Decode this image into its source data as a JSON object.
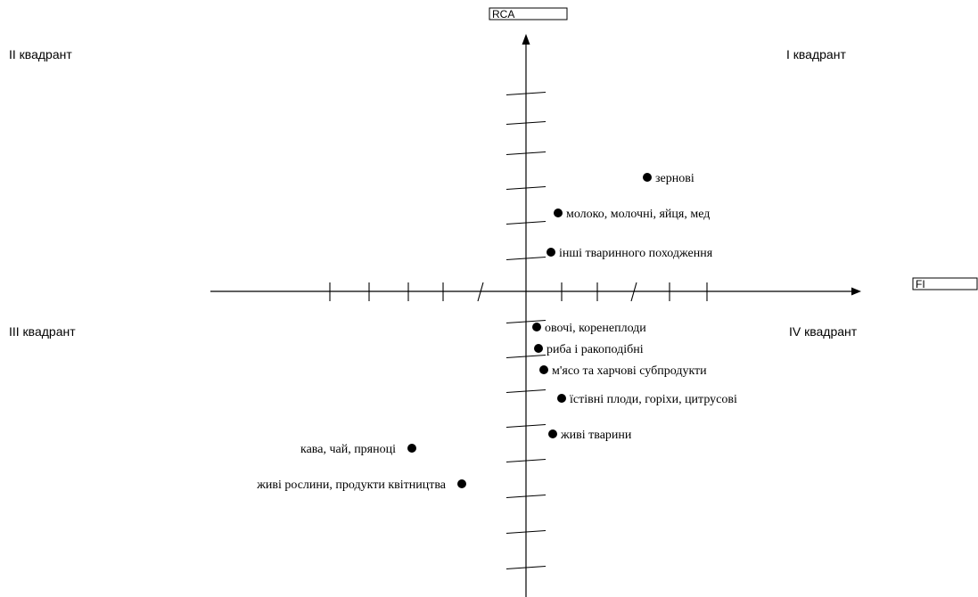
{
  "chart_data": {
    "type": "scatter",
    "axes": {
      "x_label": "FI",
      "y_label": "RCA"
    },
    "quadrant_labels": {
      "q1": "I квадрант",
      "q2": "II квадрант",
      "q3": "III квадрант",
      "q4": "IV квадрант"
    },
    "points": [
      {
        "label": "зернові",
        "x": 3.4,
        "y": 3.2
      },
      {
        "label": "молоко, молочні, яйця, мед",
        "x": 0.9,
        "y": 2.2
      },
      {
        "label": "інші тваринного походження",
        "x": 0.7,
        "y": 1.1
      },
      {
        "label": "овочі, коренеплоди",
        "x": 0.3,
        "y": -1.0
      },
      {
        "label": "риба і ракоподібні",
        "x": 0.35,
        "y": -1.6
      },
      {
        "label": "м'ясо та харчові субпродукти",
        "x": 0.5,
        "y": -2.2
      },
      {
        "label": "їстівні плоди, горіхи, цитрусові",
        "x": 1.0,
        "y": -3.0
      },
      {
        "label": "живі тварини",
        "x": 0.75,
        "y": -4.0
      },
      {
        "label": "кава, чай, пряноці",
        "x": -3.2,
        "y": -4.4
      },
      {
        "label": "живі рослини, продукти квітництва",
        "x": -1.8,
        "y": -5.4
      }
    ]
  }
}
